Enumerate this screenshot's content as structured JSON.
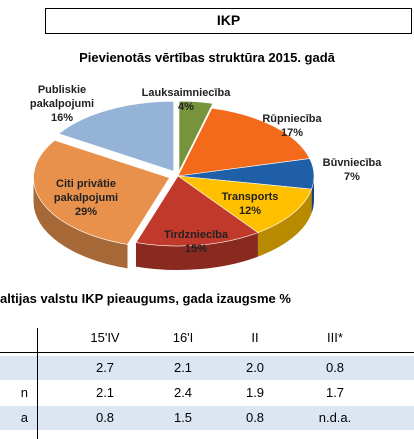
{
  "header": {
    "title": "IKP"
  },
  "chart_data": {
    "type": "pie",
    "title": "Pievienotās vērtības struktūra 2015. gadā",
    "categories": [
      "Lauksaimniecība",
      "Rūpniecība",
      "Būvniecība",
      "Transports",
      "Tirdzniecība",
      "Citi privātie pakalpojumi",
      "Publiskie pakalpojumi"
    ],
    "values": [
      4,
      17,
      7,
      12,
      15,
      29,
      16
    ],
    "value_labels": [
      "4%",
      "17%",
      "7%",
      "12%",
      "15%",
      "29%",
      "16%"
    ],
    "colors": [
      "#77933c",
      "#f46a1b",
      "#1f5fa8",
      "#ffc000",
      "#c0392b",
      "#e8914c",
      "#95b3d7"
    ]
  },
  "table": {
    "title": "altijas valstu IKP pieaugums, gada izaugsme %",
    "columns": [
      "15'IV",
      "16'I",
      "II",
      "III*"
    ],
    "rows": [
      {
        "values": [
          "2.7",
          "2.1",
          "2.0",
          "0.8"
        ]
      },
      {
        "label": "n",
        "values": [
          "2.1",
          "2.4",
          "1.9",
          "1.7"
        ]
      },
      {
        "label": "a",
        "values": [
          "0.8",
          "1.5",
          "0.8",
          "n.d.a."
        ]
      }
    ]
  }
}
